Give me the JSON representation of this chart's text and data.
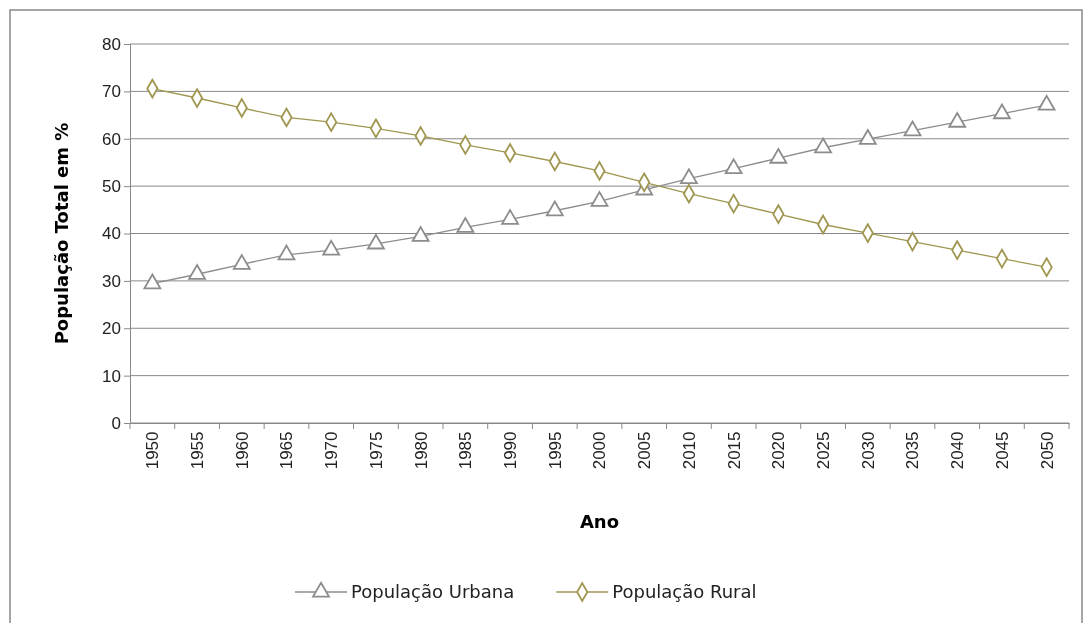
{
  "chart_data": {
    "type": "line",
    "xlabel": "Ano",
    "ylabel": "População Total em %",
    "categories": [
      "1950",
      "1955",
      "1960",
      "1965",
      "1970",
      "1975",
      "1980",
      "1985",
      "1990",
      "1995",
      "2000",
      "2005",
      "2010",
      "2015",
      "2020",
      "2025",
      "2030",
      "2035",
      "2040",
      "2045",
      "2050"
    ],
    "series": [
      {
        "name": "População Urbana",
        "color": "#8c8c8c",
        "marker": "triangle",
        "values": [
          29.4,
          31.4,
          33.5,
          35.5,
          36.5,
          37.8,
          39.4,
          41.3,
          43.0,
          44.8,
          46.8,
          49.2,
          51.6,
          53.7,
          55.9,
          58.1,
          59.9,
          61.7,
          63.5,
          65.3,
          67.1
        ]
      },
      {
        "name": "População Rural",
        "color": "#a09650",
        "marker": "diamond",
        "values": [
          70.6,
          68.6,
          66.5,
          64.5,
          63.5,
          62.2,
          60.6,
          58.7,
          57.0,
          55.2,
          53.2,
          50.8,
          48.4,
          46.3,
          44.1,
          41.9,
          40.1,
          38.3,
          36.5,
          34.7,
          32.9
        ]
      }
    ],
    "ylim": [
      0,
      80
    ],
    "yticks": [
      0,
      10,
      20,
      30,
      40,
      50,
      60,
      70,
      80
    ],
    "grid": "y",
    "legend": "bottom",
    "line_style": "solid"
  }
}
